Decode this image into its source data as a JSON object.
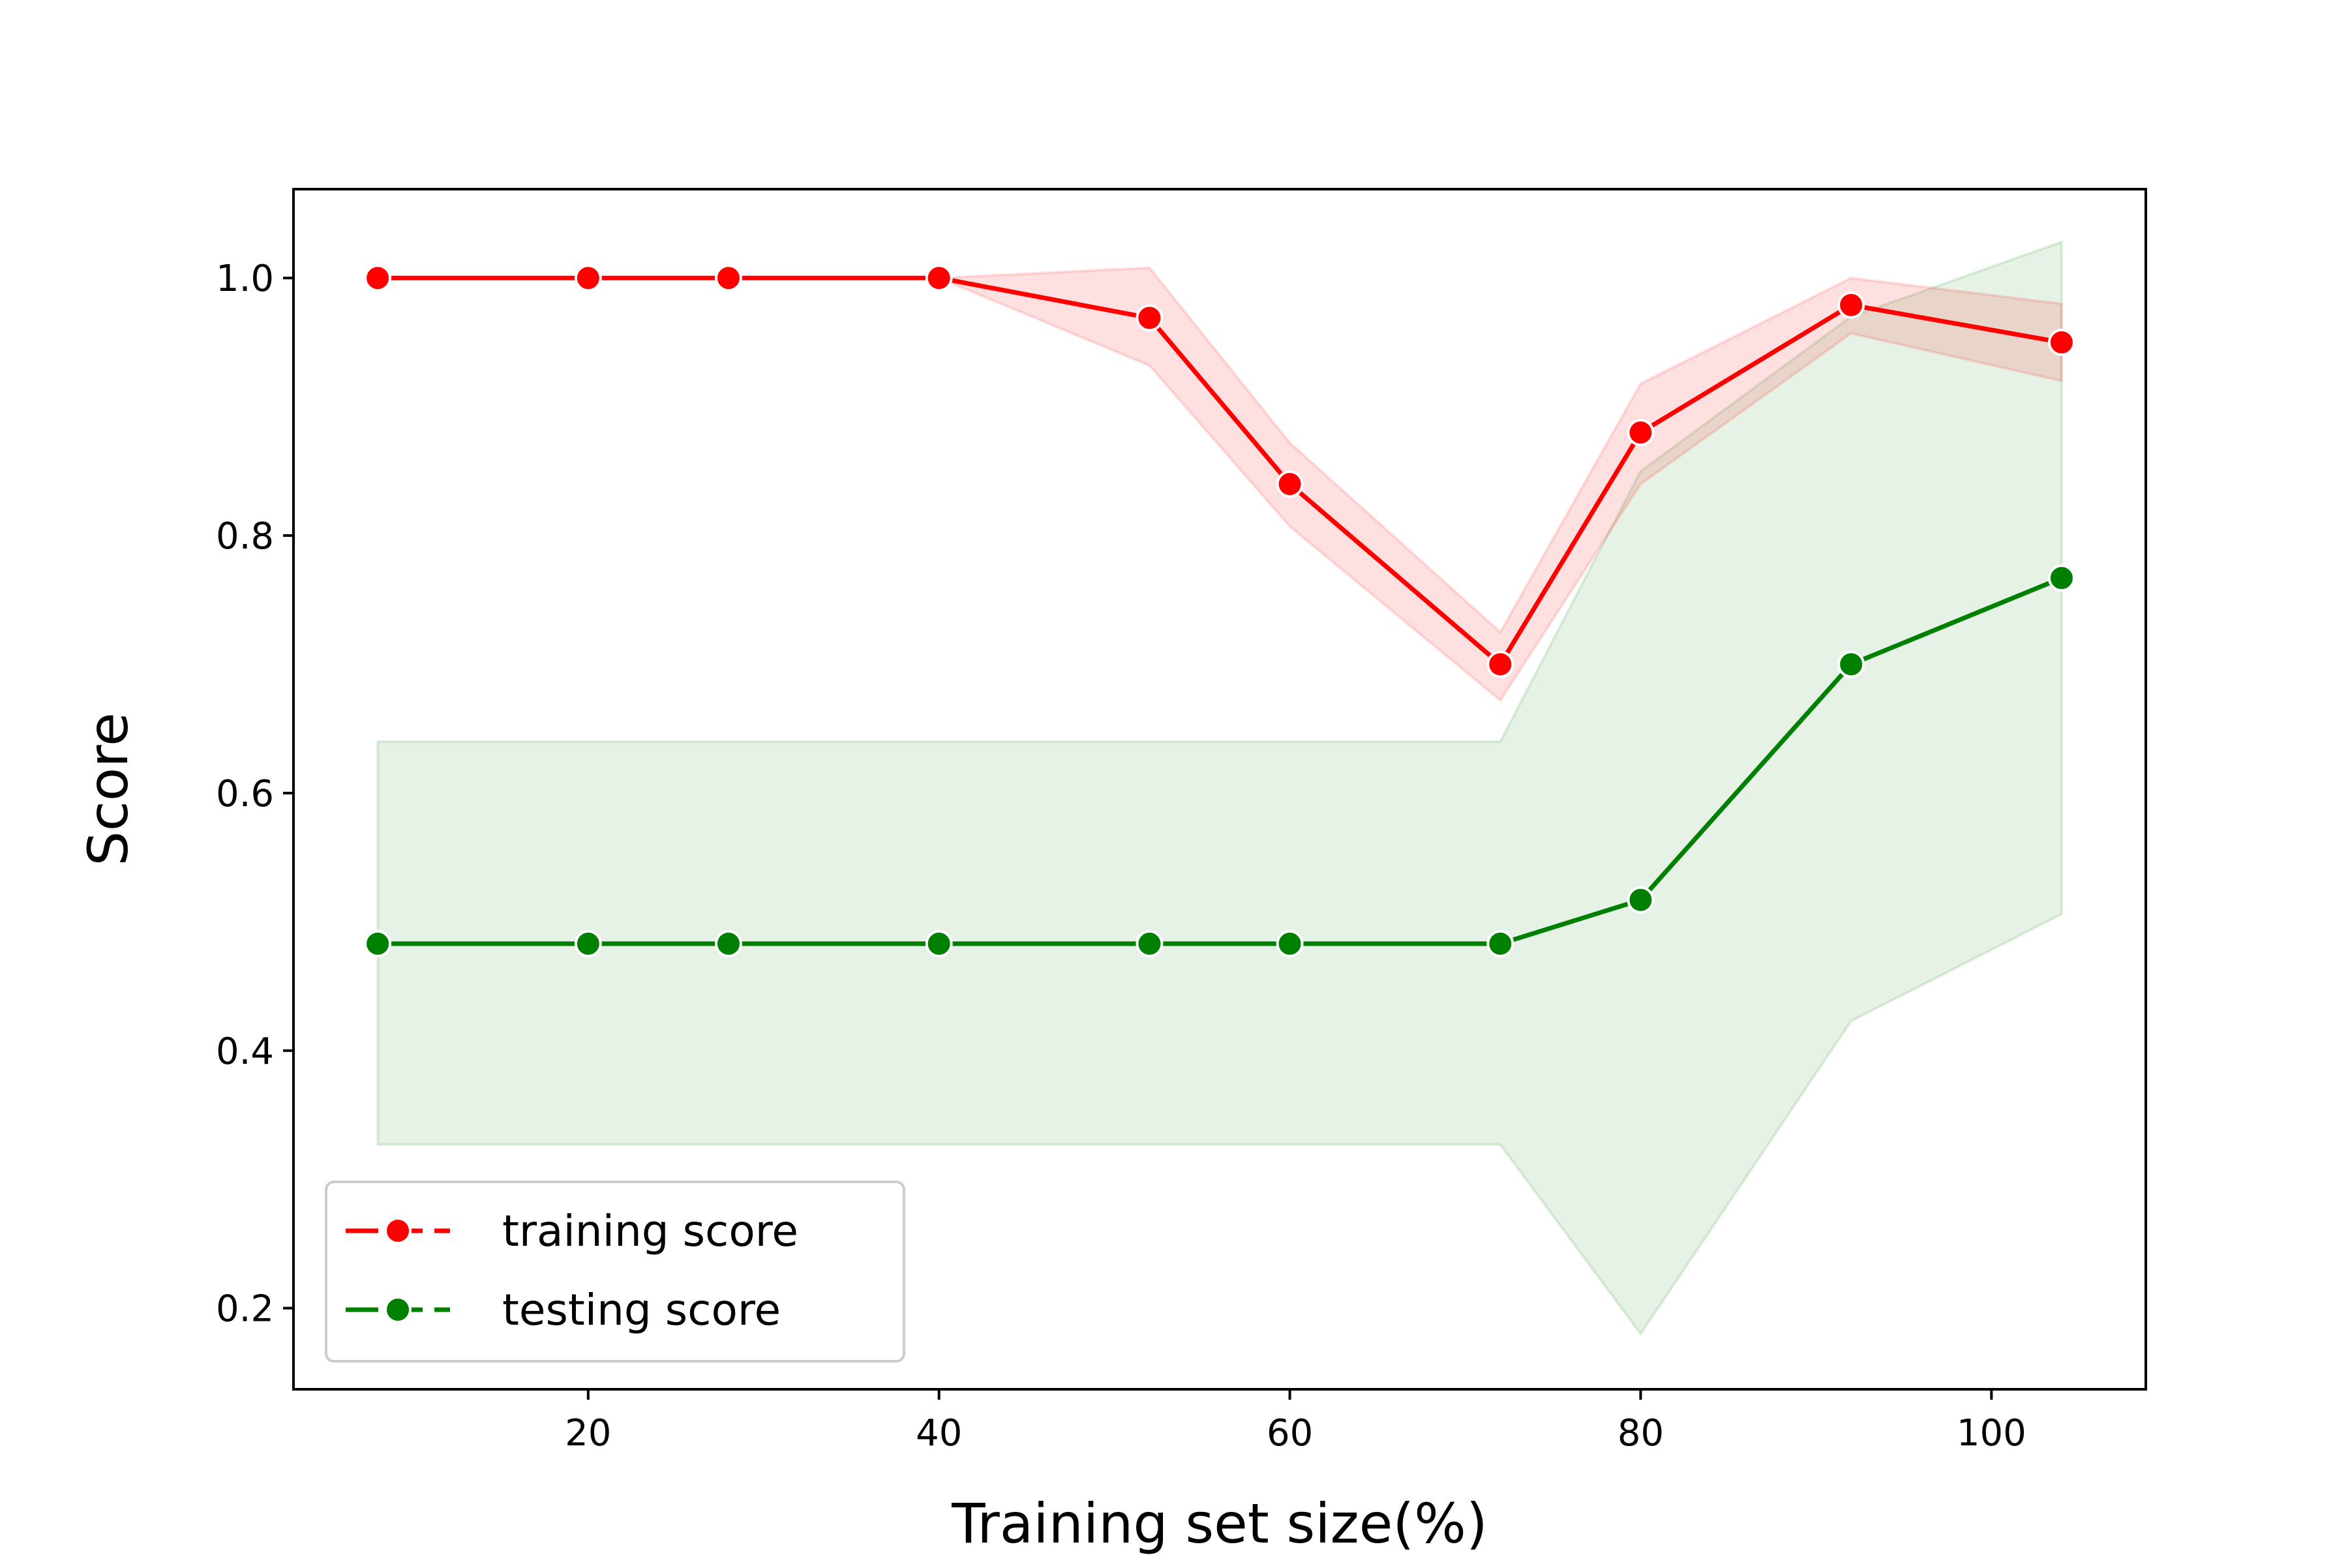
{
  "chart_data": {
    "type": "line",
    "xlabel": "Training set size(%)",
    "ylabel": "Score",
    "xlim": [
      3.2,
      108.8
    ],
    "ylim": [
      0.137,
      1.069
    ],
    "xticks": [
      20,
      40,
      60,
      80,
      100
    ],
    "xtick_labels": [
      "20",
      "40",
      "60",
      "80",
      "100"
    ],
    "yticks": [
      0.2,
      0.4,
      0.6,
      0.8,
      1.0
    ],
    "ytick_labels": [
      "0.2",
      "0.4",
      "0.6",
      "0.8",
      "1.0"
    ],
    "grid": false,
    "legend_position": "lower-left",
    "x": [
      8,
      20,
      28,
      40,
      52,
      60,
      72,
      80,
      92,
      104
    ],
    "series": [
      {
        "name": "training score",
        "color": "#ff0000",
        "values": [
          1.0,
          1.0,
          1.0,
          1.0,
          0.969,
          0.84,
          0.7,
          0.88,
          0.979,
          0.95
        ],
        "band_upper": [
          1.0,
          1.0,
          1.0,
          1.0,
          1.008,
          0.872,
          0.725,
          0.918,
          1.0,
          0.98
        ],
        "band_lower": [
          1.0,
          1.0,
          1.0,
          1.0,
          0.932,
          0.807,
          0.672,
          0.84,
          0.957,
          0.92
        ]
      },
      {
        "name": "testing score",
        "color": "#008000",
        "values": [
          0.483,
          0.483,
          0.483,
          0.483,
          0.483,
          0.483,
          0.483,
          0.517,
          0.7,
          0.767
        ],
        "band_upper": [
          0.64,
          0.64,
          0.64,
          0.64,
          0.64,
          0.64,
          0.64,
          0.85,
          0.97,
          1.028
        ],
        "band_lower": [
          0.327,
          0.327,
          0.327,
          0.327,
          0.327,
          0.327,
          0.327,
          0.18,
          0.423,
          0.506
        ]
      }
    ]
  }
}
